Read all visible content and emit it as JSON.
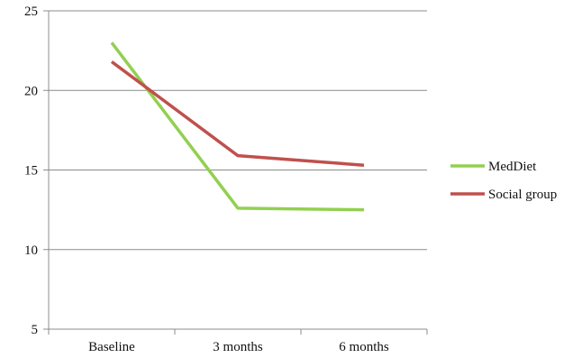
{
  "chart_data": {
    "type": "line",
    "categories": [
      "Baseline",
      "3 months",
      "6 months"
    ],
    "series": [
      {
        "name": "MedDiet",
        "color": "#92D050",
        "values": [
          23.0,
          12.6,
          12.5
        ]
      },
      {
        "name": "Social group",
        "color": "#C0504D",
        "values": [
          21.8,
          15.9,
          15.3
        ]
      }
    ],
    "ylim": [
      5,
      25
    ],
    "yticks": [
      5,
      10,
      15,
      20,
      25
    ],
    "grid": true,
    "legend": "right",
    "title": "",
    "xlabel": "",
    "ylabel": ""
  }
}
